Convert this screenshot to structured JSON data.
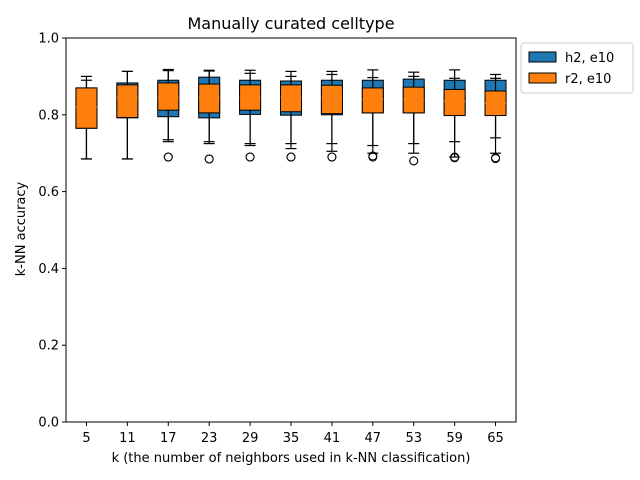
{
  "chart_data": {
    "type": "box",
    "title": "Manually curated celltype",
    "xlabel": "k (the number of neighbors used in k-NN classification)",
    "ylabel": "k-NN accuracy",
    "categories": [
      "5",
      "11",
      "17",
      "23",
      "29",
      "35",
      "41",
      "47",
      "53",
      "59",
      "65"
    ],
    "yticks": [
      "0.0",
      "0.2",
      "0.4",
      "0.6",
      "0.8",
      "1.0"
    ],
    "ylim": [
      0,
      1.0
    ],
    "legend_position": "outside-top-right",
    "series": [
      {
        "name": "h2, e10",
        "color": "#1f77b4",
        "boxes": [
          {
            "whislo": 0.685,
            "q1": 0.765,
            "med": 0.855,
            "q3": 0.87,
            "whishi": 0.9,
            "fliers": []
          },
          {
            "whislo": 0.685,
            "q1": 0.792,
            "med": 0.845,
            "q3": 0.883,
            "whishi": 0.913,
            "fliers": []
          },
          {
            "whislo": 0.735,
            "q1": 0.795,
            "med": 0.812,
            "q3": 0.89,
            "whishi": 0.918,
            "fliers": [
              0.69
            ]
          },
          {
            "whislo": 0.73,
            "q1": 0.792,
            "med": 0.808,
            "q3": 0.898,
            "whishi": 0.916,
            "fliers": [
              0.685
            ]
          },
          {
            "whislo": 0.725,
            "q1": 0.801,
            "med": 0.812,
            "q3": 0.89,
            "whishi": 0.916,
            "fliers": [
              0.69
            ]
          },
          {
            "whislo": 0.725,
            "q1": 0.799,
            "med": 0.81,
            "q3": 0.888,
            "whishi": 0.913,
            "fliers": [
              0.69
            ]
          },
          {
            "whislo": 0.725,
            "q1": 0.8,
            "med": 0.808,
            "q3": 0.89,
            "whishi": 0.913,
            "fliers": [
              0.69
            ]
          },
          {
            "whislo": 0.72,
            "q1": 0.805,
            "med": 0.85,
            "q3": 0.89,
            "whishi": 0.917,
            "fliers": [
              0.693
            ]
          },
          {
            "whislo": 0.725,
            "q1": 0.805,
            "med": 0.85,
            "q3": 0.893,
            "whishi": 0.911,
            "fliers": [
              0.68
            ]
          },
          {
            "whislo": 0.73,
            "q1": 0.8,
            "med": 0.845,
            "q3": 0.89,
            "whishi": 0.917,
            "fliers": [
              0.69
            ]
          },
          {
            "whislo": 0.74,
            "q1": 0.8,
            "med": 0.84,
            "q3": 0.89,
            "whishi": 0.905,
            "fliers": [
              0.688
            ]
          }
        ]
      },
      {
        "name": "r2, e10",
        "color": "#ff7f0e",
        "boxes": [
          {
            "whislo": 0.685,
            "q1": 0.765,
            "med": 0.82,
            "q3": 0.87,
            "whishi": 0.89,
            "fliers": []
          },
          {
            "whislo": 0.685,
            "q1": 0.793,
            "med": 0.845,
            "q3": 0.878,
            "whishi": 0.913,
            "fliers": []
          },
          {
            "whislo": 0.73,
            "q1": 0.812,
            "med": 0.845,
            "q3": 0.883,
            "whishi": 0.915,
            "fliers": [
              0.69
            ]
          },
          {
            "whislo": 0.725,
            "q1": 0.805,
            "med": 0.845,
            "q3": 0.88,
            "whishi": 0.914,
            "fliers": [
              0.685
            ]
          },
          {
            "whislo": 0.72,
            "q1": 0.812,
            "med": 0.845,
            "q3": 0.878,
            "whishi": 0.908,
            "fliers": [
              0.69
            ]
          },
          {
            "whislo": 0.712,
            "q1": 0.808,
            "med": 0.845,
            "q3": 0.878,
            "whishi": 0.9,
            "fliers": [
              0.69
            ]
          },
          {
            "whislo": 0.705,
            "q1": 0.803,
            "med": 0.845,
            "q3": 0.877,
            "whishi": 0.905,
            "fliers": [
              0.69
            ]
          },
          {
            "whislo": 0.7,
            "q1": 0.805,
            "med": 0.84,
            "q3": 0.87,
            "whishi": 0.897,
            "fliers": [
              0.69
            ]
          },
          {
            "whislo": 0.7,
            "q1": 0.805,
            "med": 0.84,
            "q3": 0.872,
            "whishi": 0.9,
            "fliers": [
              0.68
            ]
          },
          {
            "whislo": 0.69,
            "q1": 0.798,
            "med": 0.835,
            "q3": 0.866,
            "whishi": 0.895,
            "fliers": [
              0.688
            ]
          },
          {
            "whislo": 0.7,
            "q1": 0.798,
            "med": 0.83,
            "q3": 0.862,
            "whishi": 0.895,
            "fliers": [
              0.686
            ]
          }
        ]
      }
    ]
  }
}
